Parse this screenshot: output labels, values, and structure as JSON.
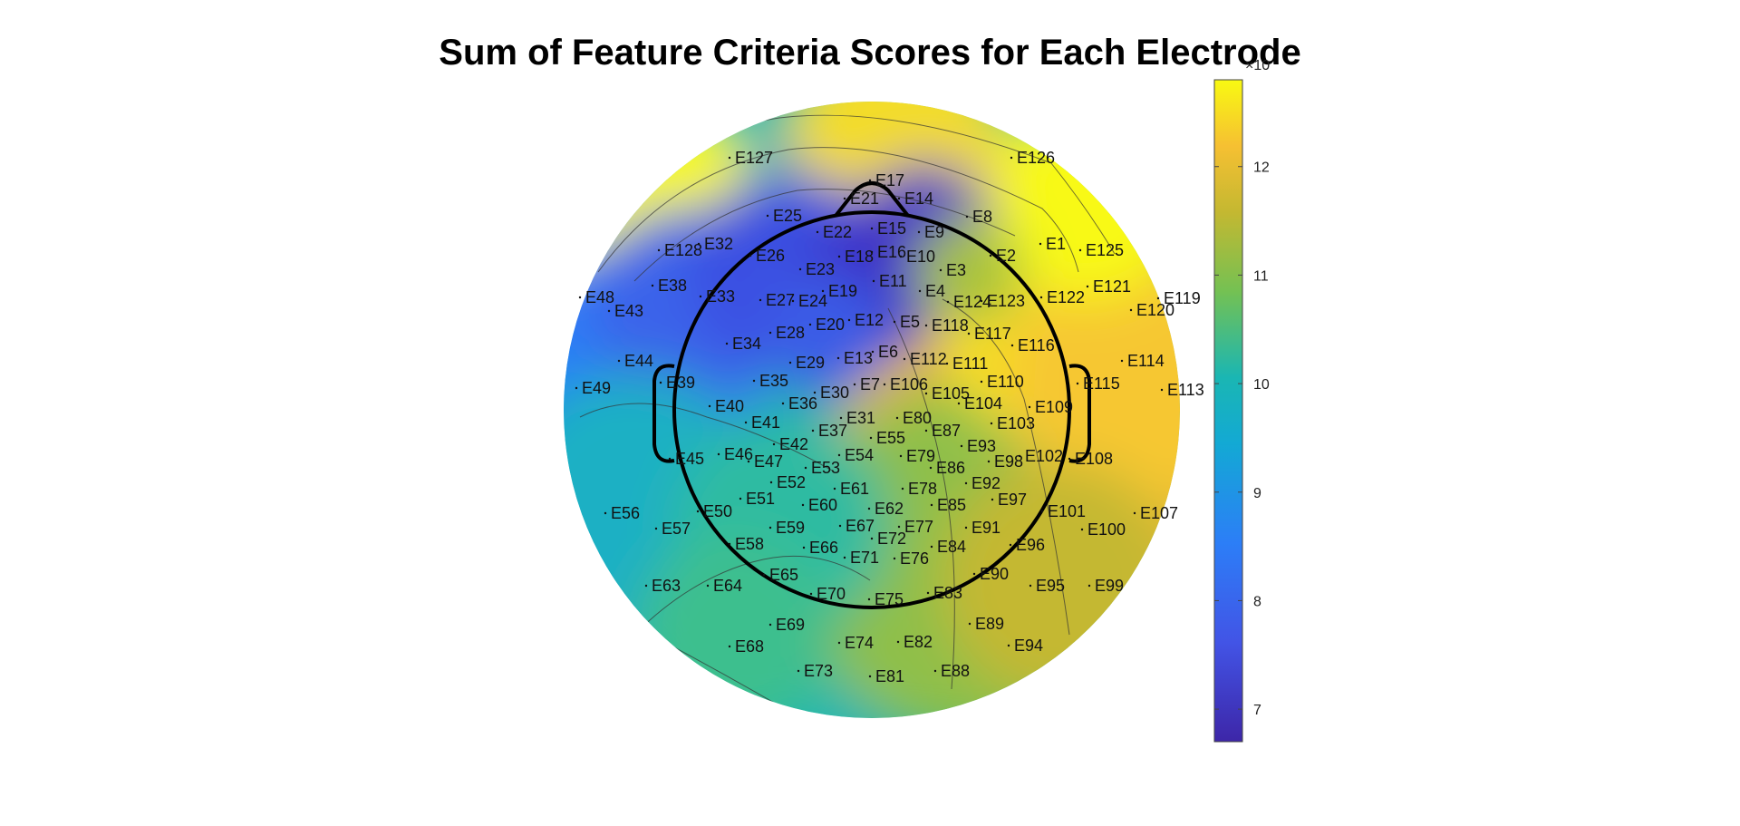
{
  "chart_data": {
    "type": "heatmap",
    "title": "Sum of Feature Criteria Scores for Each Electrode",
    "colorbar": {
      "min": 6.7,
      "max": 12.8,
      "ticks": [
        7,
        8,
        9,
        10,
        11,
        12
      ],
      "exponent_label": "×10",
      "colormap": "parula"
    },
    "electrodes": [
      "E1",
      "E2",
      "E3",
      "E4",
      "E5",
      "E6",
      "E7",
      "E8",
      "E9",
      "E10",
      "E11",
      "E12",
      "E13",
      "E14",
      "E15",
      "E16",
      "E17",
      "E18",
      "E19",
      "E20",
      "E21",
      "E22",
      "E23",
      "E24",
      "E25",
      "E26",
      "E27",
      "E28",
      "E29",
      "E30",
      "E31",
      "E32",
      "E33",
      "E34",
      "E35",
      "E36",
      "E37",
      "E38",
      "E39",
      "E40",
      "E41",
      "E42",
      "E43",
      "E44",
      "E45",
      "E46",
      "E47",
      "E48",
      "E49",
      "E50",
      "E51",
      "E52",
      "E53",
      "E54",
      "E55",
      "E56",
      "E57",
      "E58",
      "E59",
      "E60",
      "E61",
      "E62",
      "E63",
      "E64",
      "E65",
      "E66",
      "E67",
      "E68",
      "E69",
      "E70",
      "E71",
      "E72",
      "E73",
      "E74",
      "E75",
      "E76",
      "E77",
      "E78",
      "E79",
      "E80",
      "E81",
      "E82",
      "E83",
      "E84",
      "E85",
      "E86",
      "E87",
      "E88",
      "E89",
      "E90",
      "E91",
      "E92",
      "E93",
      "E94",
      "E95",
      "E96",
      "E97",
      "E98",
      "E99",
      "E100",
      "E101",
      "E102",
      "E103",
      "E104",
      "E105",
      "E106",
      "E107",
      "E108",
      "E109",
      "E110",
      "E111",
      "E112",
      "E113",
      "E114",
      "E115",
      "E116",
      "E117",
      "E118",
      "E119",
      "E120",
      "E121",
      "E122",
      "E123",
      "E124",
      "E125",
      "E126",
      "E127",
      "E128"
    ]
  }
}
